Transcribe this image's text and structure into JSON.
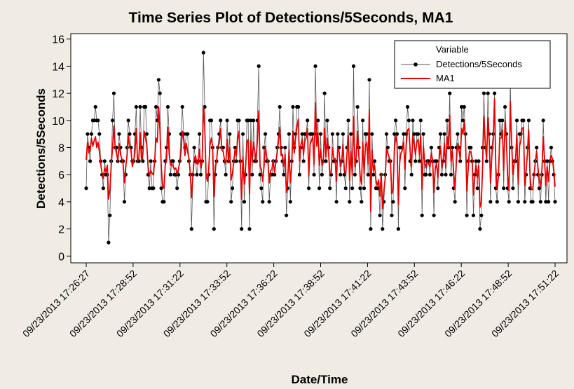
{
  "chart_data": {
    "type": "line",
    "title": "Time Series Plot of Detections/5Seconds, MA1",
    "xlabel": "Date/Time",
    "ylabel": "Detections/5Seconds",
    "ylim": [
      -0.5,
      16.4
    ],
    "yticks": [
      0,
      2,
      4,
      6,
      8,
      10,
      12,
      14,
      16
    ],
    "x_tick_labels": [
      "09/23/2013 17:26:27",
      "09/23/2013 17:28:52",
      "09/23/2013 17:31:22",
      "09/23/2013 17:33:52",
      "09/23/2013 17:36:22",
      "09/23/2013 17:38:52",
      "09/23/2013 17:41:22",
      "09/23/2013 17:43:52",
      "09/23/2013 17:46:22",
      "09/23/2013 17:48:52",
      "09/23/2013 17:51:22"
    ],
    "x_start": "09/23/2013 17:26:27",
    "x_interval_seconds": 5,
    "legend": {
      "title": "Variable",
      "placement": "top-right"
    },
    "grid": false,
    "series": [
      {
        "name": "Detections/5Seconds",
        "color": "#555555",
        "marker": "circle",
        "values": [
          5,
          9,
          8,
          7,
          9,
          10,
          10,
          11,
          10,
          10,
          9,
          7,
          6,
          5,
          7,
          6,
          6,
          1,
          3,
          7,
          10,
          12,
          8,
          8,
          7,
          9,
          8,
          7,
          7,
          4,
          6,
          8,
          10,
          9,
          8,
          7,
          7,
          9,
          11,
          7,
          7,
          11,
          8,
          7,
          11,
          11,
          9,
          6,
          5,
          7,
          5,
          5,
          7,
          11,
          10,
          13,
          12,
          5,
          4,
          4,
          7,
          8,
          11,
          9,
          6,
          7,
          7,
          6,
          6,
          5,
          6,
          7,
          9,
          11,
          9,
          8,
          9,
          9,
          7,
          6,
          2,
          6,
          8,
          7,
          6,
          7,
          9,
          6,
          7,
          15,
          11,
          4,
          4,
          6,
          10,
          10,
          8,
          2,
          6,
          7,
          8,
          9,
          10,
          8,
          8,
          7,
          6,
          10,
          7,
          9,
          4,
          5,
          7,
          8,
          7,
          10,
          10,
          7,
          2,
          9,
          4,
          6,
          10,
          10,
          2,
          10,
          6,
          10,
          7,
          7,
          10,
          14,
          6,
          5,
          4,
          8,
          9,
          7,
          7,
          4,
          6,
          6,
          7,
          6,
          7,
          8,
          9,
          11,
          8,
          7,
          6,
          8,
          3,
          5,
          9,
          4,
          7,
          11,
          8,
          9,
          11,
          11,
          6,
          8,
          9,
          7,
          9,
          9,
          10,
          5,
          9,
          9,
          9,
          6,
          14,
          9,
          10,
          5,
          9,
          6,
          7,
          12,
          7,
          10,
          8,
          5,
          6,
          9,
          7,
          7,
          4,
          9,
          8,
          6,
          7,
          9,
          6,
          5,
          8,
          10,
          4,
          9,
          5,
          14,
          6,
          7,
          11,
          8,
          5,
          4,
          10,
          5,
          9,
          9,
          6,
          13,
          2,
          9,
          6,
          7,
          5,
          5,
          5,
          3,
          6,
          2,
          4,
          6,
          9,
          8,
          7,
          7,
          3,
          4,
          9,
          10,
          9,
          2,
          8,
          8,
          8,
          9,
          5,
          9,
          11,
          10,
          7,
          6,
          10,
          9,
          7,
          9,
          9,
          7,
          10,
          3,
          9,
          6,
          6,
          7,
          7,
          6,
          8,
          7,
          3,
          7,
          7,
          5,
          8,
          9,
          6,
          7,
          9,
          6,
          10,
          8,
          12,
          6,
          8,
          5,
          4,
          8,
          9,
          8,
          7,
          11,
          10,
          11,
          9,
          3,
          7,
          8,
          8,
          7,
          3,
          6,
          7,
          5,
          7,
          2,
          3,
          8,
          12,
          8,
          7,
          12,
          9,
          4,
          8,
          9,
          12,
          5,
          4,
          6,
          10,
          9,
          10,
          5,
          11,
          9,
          5,
          4,
          13,
          8,
          5,
          7,
          7,
          10,
          4,
          9,
          9,
          10,
          10,
          4,
          6,
          8,
          10,
          5,
          4,
          4,
          6,
          7,
          8,
          6,
          5,
          4,
          6,
          10,
          7,
          4,
          7,
          4,
          7,
          8,
          7,
          6,
          4
        ]
      },
      {
        "name": "MA1",
        "color": "#e60000",
        "values": [
          7.1,
          8.4,
          7.6,
          7.8,
          8.7,
          8.1,
          8.5,
          8.8,
          8,
          8.4,
          7.7,
          6.8,
          6.1,
          5.7,
          6.5,
          6.2,
          6.7,
          4.2,
          4.9,
          6.7,
          8,
          9.6,
          8,
          7.6,
          7,
          8.3,
          7.5,
          7.2,
          6.8,
          5.4,
          6.6,
          7.4,
          8.9,
          8,
          7.8,
          6.6,
          7,
          7.6,
          9.4,
          7,
          7.3,
          9.1,
          7,
          7.5,
          9.2,
          8.7,
          8.2,
          6.6,
          5.9,
          6.3,
          6.1,
          6,
          7,
          8.7,
          8.4,
          11,
          9.3,
          6.6,
          5.2,
          5,
          6.7,
          7.1,
          9.5,
          7.5,
          6.7,
          6.8,
          6.6,
          6.4,
          6.5,
          6,
          6.4,
          6.9,
          7.7,
          9.2,
          8.6,
          7.4,
          8.3,
          7.7,
          7.2,
          6.1,
          4.3,
          5.9,
          7.2,
          7.4,
          6.8,
          6.8,
          7.9,
          6.5,
          6.9,
          11,
          9.6,
          6,
          5.5,
          6.4,
          8.2,
          8.7,
          8.1,
          4.4,
          6.6,
          7,
          8.1,
          8.3,
          9.4,
          7.8,
          7.7,
          7.1,
          6.8,
          8.6,
          7,
          8,
          5.6,
          6.1,
          6.9,
          7.9,
          7.4,
          8.6,
          9.2,
          6.9,
          4.2,
          7.3,
          5.3,
          6.5,
          8.4,
          8.6,
          4.6,
          8.5,
          6.9,
          8.4,
          7.7,
          7,
          8.6,
          10.7,
          6.6,
          6.4,
          5.5,
          6.6,
          8.1,
          7.3,
          7,
          5.4,
          6.3,
          6.4,
          7.1,
          6.1,
          6.9,
          7.6,
          8.5,
          9.5,
          7.4,
          7.5,
          6.6,
          7.5,
          4.7,
          5.6,
          7.8,
          5.4,
          6.7,
          9.2,
          7.6,
          8.7,
          9.5,
          10.1,
          7,
          8.2,
          8.6,
          7.5,
          8.5,
          8.7,
          9.4,
          5.9,
          8.2,
          8.5,
          8.8,
          6.8,
          11.3,
          8.1,
          9,
          6.7,
          7.9,
          6.7,
          6.9,
          9.4,
          7.3,
          8.7,
          7.6,
          6.1,
          6.1,
          8,
          7.2,
          7.2,
          5.5,
          8,
          7.7,
          6.6,
          7,
          8.2,
          6.3,
          6,
          7.5,
          8.9,
          5.6,
          7.7,
          6,
          10.3,
          6.6,
          7.3,
          9.2,
          7.4,
          5.9,
          5.3,
          8.4,
          6.1,
          8.1,
          8.4,
          6.8,
          10.8,
          3.3,
          7.8,
          6.3,
          6.7,
          5.6,
          5.2,
          5.6,
          4.4,
          6.1,
          3.5,
          4.8,
          5.7,
          7.9,
          7.6,
          7.3,
          7,
          4.6,
          4.9,
          7.7,
          8.9,
          8.3,
          3.8,
          6.9,
          7.6,
          7.8,
          8.4,
          6.4,
          8.2,
          9.3,
          9.4,
          7.7,
          6.6,
          8.9,
          8.2,
          7.5,
          8.4,
          8.6,
          7.5,
          8.9,
          4.9,
          8.1,
          6.9,
          6.5,
          7,
          6.8,
          6.6,
          7.6,
          7.1,
          4.7,
          6.4,
          6.8,
          5.8,
          7.2,
          8.1,
          6.5,
          7,
          8.3,
          6.5,
          8.8,
          8,
          10.4,
          7,
          7.8,
          6.2,
          4.9,
          6.9,
          8.3,
          7.8,
          7.1,
          9.4,
          9,
          9.9,
          8.6,
          4.8,
          6.4,
          7.7,
          7.7,
          7.2,
          4.5,
          5.8,
          6.7,
          5.8,
          6.7,
          3.6,
          4,
          6.6,
          10.3,
          8.3,
          7.1,
          10.2,
          8.6,
          5.4,
          7.4,
          8.5,
          11.6,
          6.6,
          4.9,
          5.9,
          8.7,
          8.7,
          9.3,
          6.3,
          9.9,
          8.6,
          5.9,
          4.8,
          11.4,
          8.4,
          6,
          6.9,
          7.1,
          9,
          5.3,
          8.1,
          8.5,
          9.4,
          9.5,
          5.2,
          6.3,
          7.5,
          9.3,
          5.9,
          4.9,
          4.9,
          6,
          6.9,
          7.7,
          6.5,
          5.7,
          5.1,
          6.3,
          8.8,
          7.1,
          5.2,
          6.6,
          5.5,
          6.9,
          7.4,
          7.2,
          6.4,
          5.1
        ]
      }
    ]
  }
}
